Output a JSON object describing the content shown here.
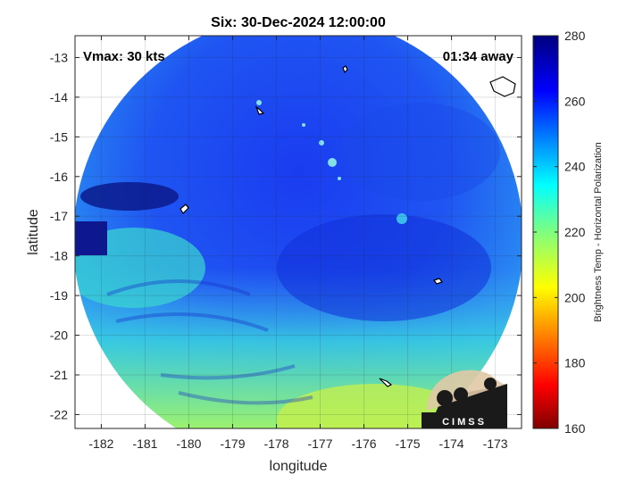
{
  "chart_data": {
    "type": "heatmap",
    "title": "Six: 30-Dec-2024 12:00:00",
    "annotations": {
      "vmax": "Vmax: 30 kts",
      "away": "01:34 away"
    },
    "xlabel": "longitude",
    "ylabel": "latitude",
    "xlim": [
      -182.6,
      -172.4
    ],
    "ylim": [
      -22.35,
      -12.45
    ],
    "x_ticks": [
      -182,
      -181,
      -180,
      -179,
      -178,
      -177,
      -176,
      -175,
      -174,
      -173
    ],
    "y_ticks": [
      -13,
      -14,
      -15,
      -16,
      -17,
      -18,
      -19,
      -20,
      -21,
      -22
    ],
    "grid": true,
    "colorbar": {
      "label": "Brightness Temp - Horizontal Polarization",
      "range": [
        160,
        280
      ],
      "ticks": [
        160,
        180,
        200,
        220,
        240,
        260,
        280
      ],
      "colormap": "jet"
    },
    "swath_center": [
      -177.0,
      -17.3
    ],
    "regions": [
      {
        "name": "upper swath",
        "lon": -177.0,
        "lat": -14.5,
        "value": 262
      },
      {
        "name": "central swath",
        "lon": -177.0,
        "lat": -17.5,
        "value": 255
      },
      {
        "name": "dark cold patch",
        "lon": -181.0,
        "lat": -16.2,
        "value": 275
      },
      {
        "name": "southwest band",
        "lon": -180.5,
        "lat": -19.8,
        "value": 232
      },
      {
        "name": "southern edge",
        "lon": -177.0,
        "lat": -21.8,
        "value": 222
      },
      {
        "name": "southeast yellow",
        "lon": -176.0,
        "lat": -22.0,
        "value": 215
      },
      {
        "name": "bright spots",
        "lon": -176.5,
        "lat": -15.5,
        "value": 238
      }
    ],
    "logo_text": "CIMSS"
  }
}
